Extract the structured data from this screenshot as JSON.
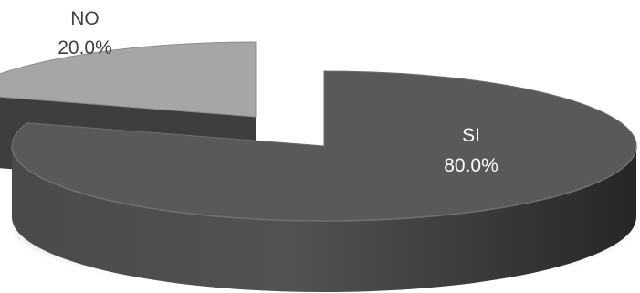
{
  "chart_data": {
    "type": "pie",
    "style": "3d-exploded",
    "title": "",
    "slices": [
      {
        "name": "SI",
        "value": 80.0,
        "label": "80.0%",
        "color": "#595959",
        "label_color": "#ffffff"
      },
      {
        "name": "NO",
        "value": 20.0,
        "label": "20.0%",
        "color": "#a6a6a6",
        "label_color": "#404040"
      }
    ],
    "legend": "none"
  }
}
